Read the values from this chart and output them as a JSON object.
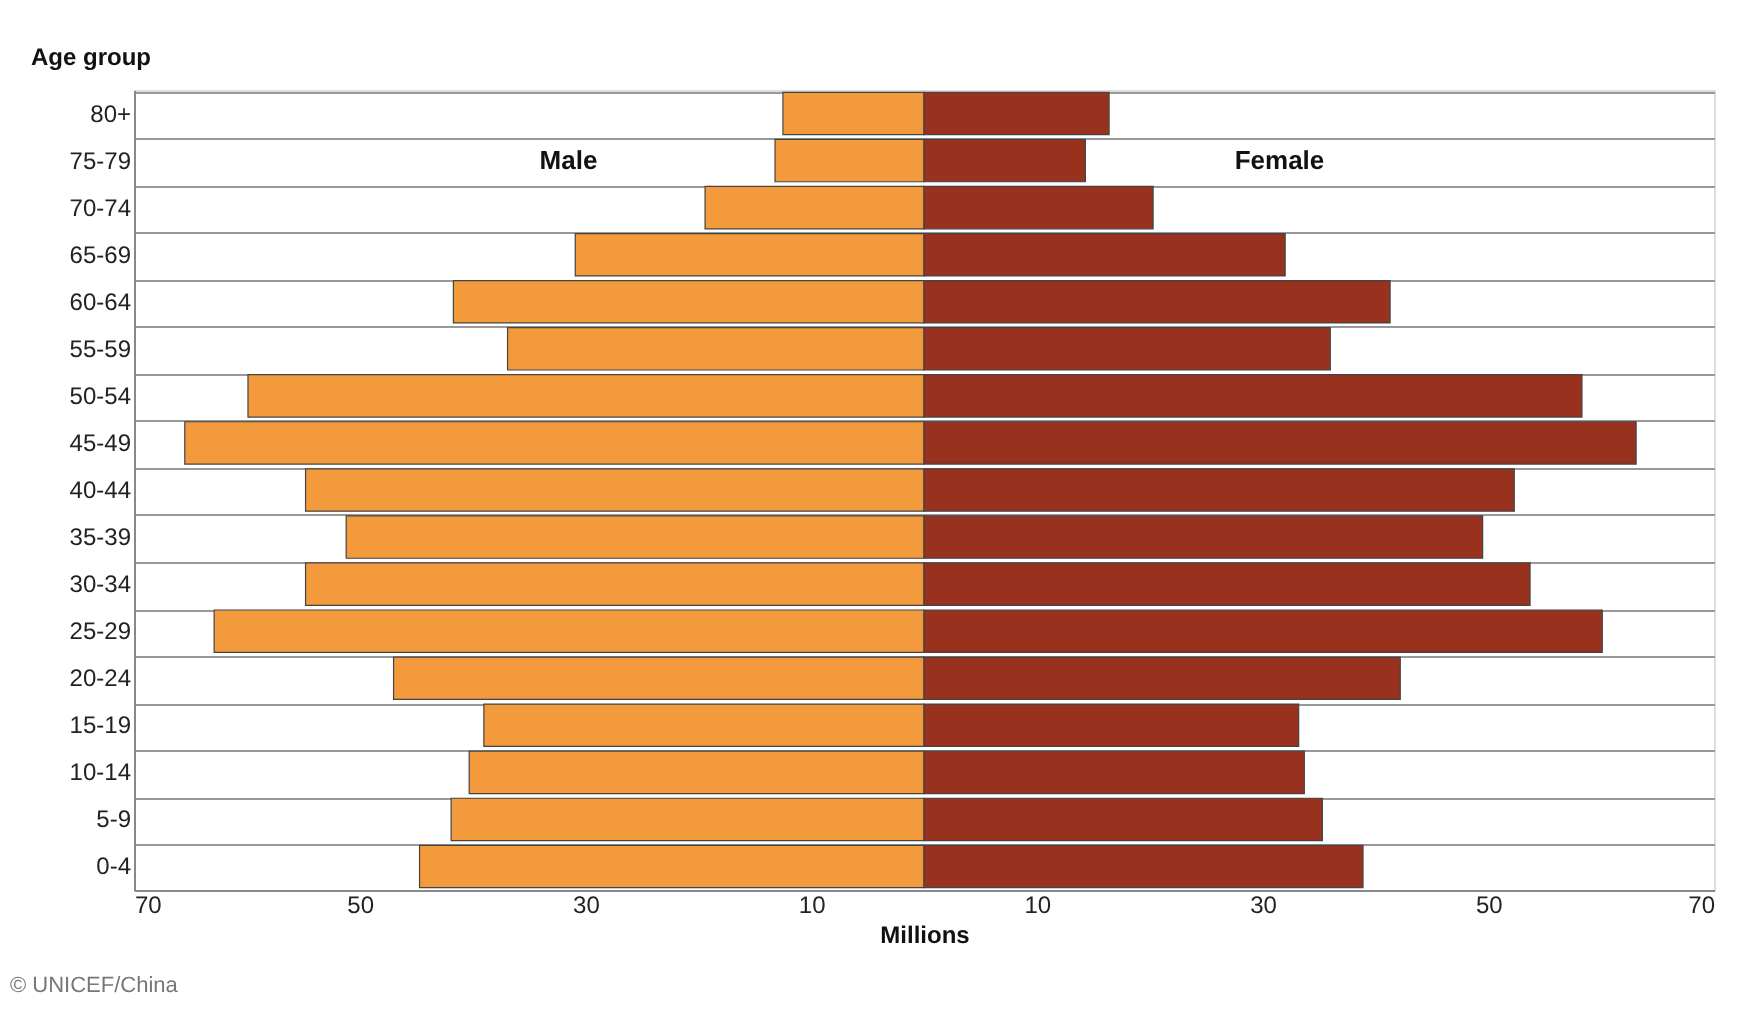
{
  "chart_data": {
    "type": "bar",
    "orientation": "horizontal",
    "xlabel": "Millions",
    "ylabel": "Age group",
    "categories": [
      "80+",
      "75-79",
      "70-74",
      "65-69",
      "60-64",
      "55-59",
      "50-54",
      "45-49",
      "40-44",
      "35-39",
      "30-34",
      "25-29",
      "20-24",
      "15-19",
      "10-14",
      "5-9",
      "0-4"
    ],
    "series": [
      {
        "name": "Male",
        "color": "#f39a3d",
        "values": [
          -12.5,
          -13.2,
          -19.4,
          -30.9,
          -41.7,
          -36.9,
          -59.9,
          -65.5,
          -54.8,
          -51.2,
          -54.8,
          -62.9,
          -47,
          -39,
          -40.3,
          -41.9,
          -44.7
        ]
      },
      {
        "name": "Female",
        "color": "#98321f",
        "values": [
          16.4,
          14.3,
          20.3,
          32,
          41.3,
          36,
          58.3,
          63.1,
          52.3,
          49.5,
          53.7,
          60.1,
          42.2,
          33.2,
          33.7,
          35.3,
          38.9
        ]
      }
    ],
    "xlim": [
      -70,
      70
    ],
    "xticks": [
      {
        "value": -70,
        "label": "70"
      },
      {
        "value": -50,
        "label": "50"
      },
      {
        "value": -30,
        "label": "30"
      },
      {
        "value": -10,
        "label": "10"
      },
      10,
      30,
      50,
      70
    ],
    "grid": "y",
    "stacked": true,
    "annotations": [
      "© UNICEF/China"
    ]
  }
}
